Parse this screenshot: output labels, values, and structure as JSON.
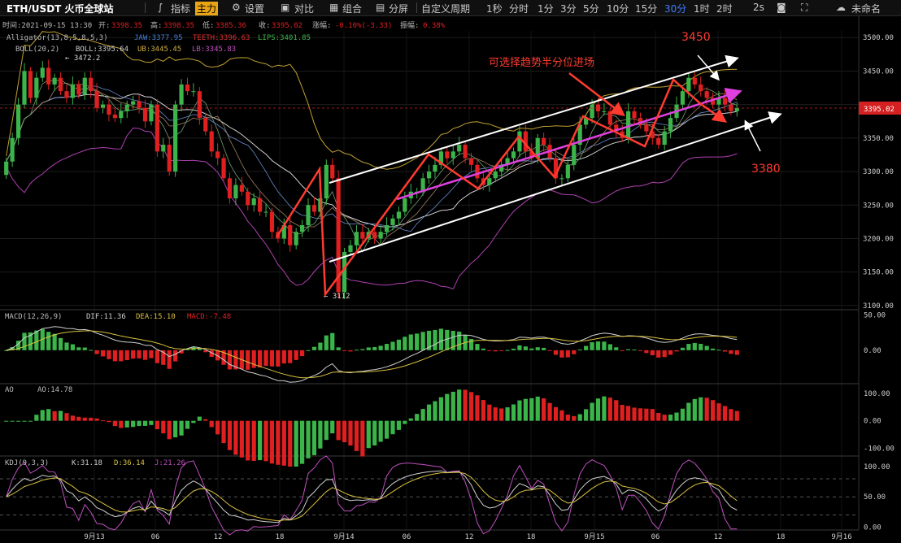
{
  "toolbar": {
    "symbol": "ETH/USDT 火币全球站",
    "indicators": "指标",
    "main_tag": "主力",
    "settings": "设置",
    "compare": "对比",
    "combine": "组合",
    "split": "分屏",
    "custom_period": "自定义周期",
    "periods": [
      "1秒",
      "分时",
      "1分",
      "3分",
      "5分",
      "10分",
      "15分",
      "30分",
      "1时",
      "2时"
    ],
    "active_period": "30分",
    "refresh": "2s",
    "layout_name": "未命名"
  },
  "info_line": {
    "time": "时间:2021-09-15 13:30",
    "open_l": "开:",
    "open": "3398.35",
    "high_l": "高:",
    "high": "3398.35",
    "low_l": "低:",
    "low": "3385.36",
    "close_l": "收:",
    "close": "3395.02",
    "change_l": "涨幅:",
    "change": "-0.10%(-3.33)",
    "amp_l": "振幅:",
    "amp": "0.38%"
  },
  "legends": {
    "alligator": "Alligator(13,8,5,8,5,3)",
    "jaw": "JAW:3377.95",
    "teeth": "TEETH:3396.63",
    "lips": "LIPS:3401.85",
    "boll": "BOLL(20,2)",
    "boll_mid": "BOLL:3395.64",
    "ub": "UB:3445.45",
    "lb": "LB:3345.83",
    "macd": "MACD(12,26,9)",
    "dif": "DIF:11.36",
    "dea": "DEA:15.10",
    "macd_v": "MACD:-7.48",
    "ao": "AO",
    "ao_v": "AO:14.78",
    "kdj": "KDJ(9,3,3)",
    "k": "K:31.18",
    "d": "D:36.14",
    "j": "J:21.26"
  },
  "colors": {
    "up": "#3bb54a",
    "down": "#e02020",
    "annotation": "#ff3b30",
    "channel": "#ffffff",
    "trend_arrow": "#e040e0",
    "boll_mid": "#d0d0d0",
    "boll_band": "#c0a030",
    "lb_band": "#b040b0",
    "price_label_bg": "#d42020"
  },
  "annotations": {
    "label_top": "3450",
    "label_bottom": "3380",
    "label_mid": "可选择趋势半分位进场",
    "high_marker": "← 3472.2",
    "low_marker": "← 3112"
  },
  "price_tag": "3395.02",
  "chart_data": [
    {
      "type": "candlestick",
      "title": "ETH/USDT 30分",
      "y_ticks": [
        "3500.00",
        "3450.00",
        "3400.00",
        "3350.00",
        "3300.00",
        "3250.00",
        "3200.00",
        "3150.00",
        "3100.00"
      ],
      "ylim": [
        3095,
        3510
      ],
      "x_ticks": [
        "9月13",
        "06",
        "12",
        "18",
        "9月14",
        "06",
        "12",
        "18",
        "9月15",
        "06",
        "12",
        "18",
        "9月16"
      ],
      "close": [
        3315,
        3350,
        3400,
        3450,
        3410,
        3440,
        3455,
        3430,
        3440,
        3420,
        3410,
        3430,
        3415,
        3440,
        3420,
        3395,
        3400,
        3385,
        3380,
        3390,
        3400,
        3405,
        3395,
        3375,
        3400,
        3330,
        3340,
        3300,
        3400,
        3430,
        3420,
        3420,
        3380,
        3360,
        3330,
        3320,
        3290,
        3260,
        3280,
        3270,
        3250,
        3260,
        3240,
        3240,
        3210,
        3200,
        3220,
        3190,
        3210,
        3220,
        3250,
        3240,
        3260,
        3310,
        3290,
        3120,
        3180,
        3190,
        3210,
        3200,
        3210,
        3200,
        3210,
        3220,
        3230,
        3240,
        3260,
        3270,
        3270,
        3290,
        3300,
        3310,
        3330,
        3320,
        3330,
        3340,
        3320,
        3310,
        3290,
        3280,
        3290,
        3300,
        3310,
        3320,
        3330,
        3360,
        3330,
        3320,
        3350,
        3340,
        3320,
        3290,
        3290,
        3310,
        3340,
        3370,
        3380,
        3400,
        3390,
        3390,
        3370,
        3360,
        3350,
        3390,
        3380,
        3370,
        3360,
        3350,
        3340,
        3360,
        3380,
        3400,
        3420,
        3440,
        3430,
        3420,
        3410,
        3400,
        3410,
        3400,
        3390,
        3395
      ],
      "ohlc_note": "30-minute candles, last close 3395.02"
    },
    {
      "type": "bar",
      "title": "MACD(12,26,9)",
      "y_ticks": [
        "50.00",
        "0.00"
      ],
      "ylim": [
        -45,
        55
      ],
      "series": [
        {
          "name": "DIF",
          "last": 11.36
        },
        {
          "name": "DEA",
          "last": 15.1
        },
        {
          "name": "MACD",
          "last": -7.48
        }
      ]
    },
    {
      "type": "bar",
      "title": "AO",
      "y_ticks": [
        "100.00",
        "0.00",
        "-100.00"
      ],
      "ylim": [
        -120,
        130
      ],
      "series": [
        {
          "name": "AO",
          "last": 14.78
        }
      ]
    },
    {
      "type": "line",
      "title": "KDJ(9,3,3)",
      "y_ticks": [
        "100.00",
        "50.00",
        "0.00"
      ],
      "ylim": [
        -5,
        115
      ],
      "series": [
        {
          "name": "K",
          "last": 31.18
        },
        {
          "name": "D",
          "last": 36.14
        },
        {
          "name": "J",
          "last": 21.26
        }
      ]
    }
  ]
}
